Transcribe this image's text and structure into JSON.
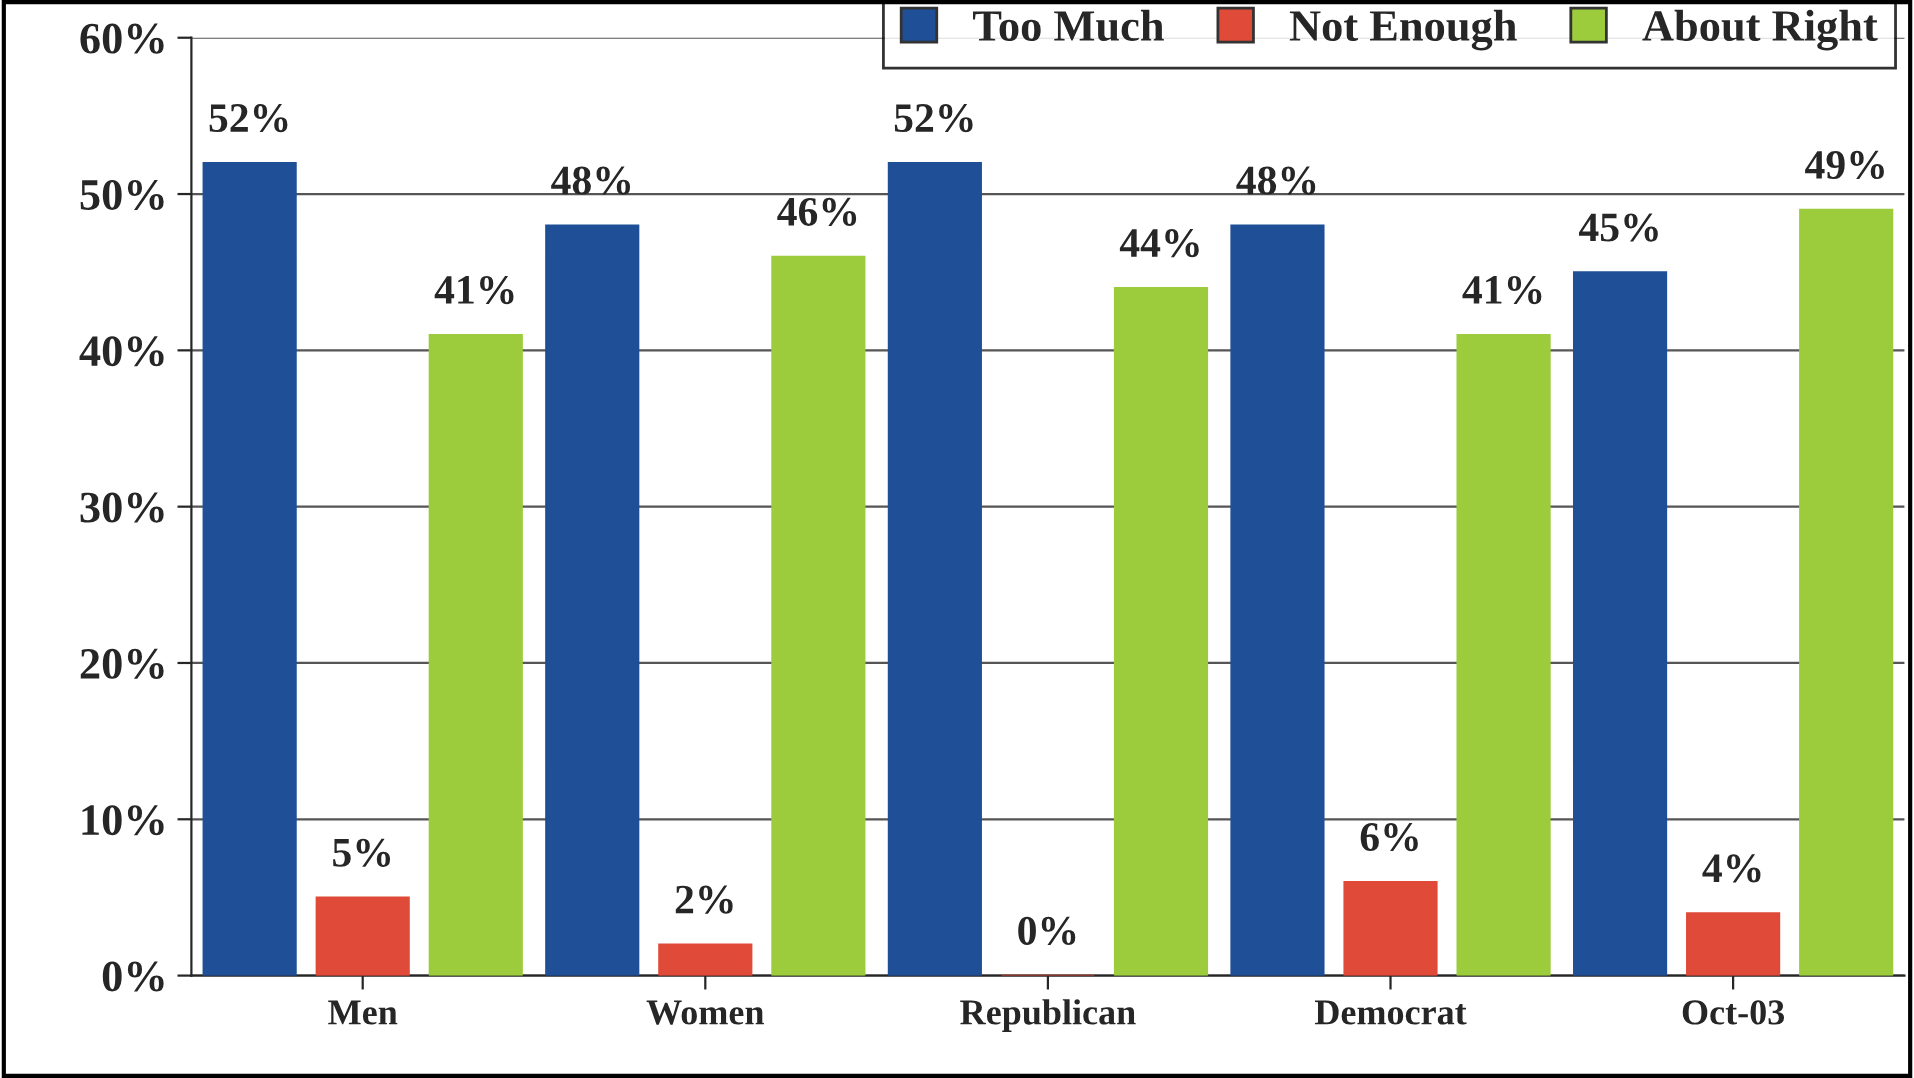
{
  "chart_data": {
    "type": "bar",
    "categories": [
      "Men",
      "Women",
      "Republican",
      "Democrat",
      "Oct-03"
    ],
    "series": [
      {
        "name": "Too Much",
        "color": "#1f4f96",
        "values": [
          52,
          48,
          52,
          48,
          45
        ],
        "value_labels": [
          "52%",
          "48%",
          "52%",
          "48%",
          "45%"
        ]
      },
      {
        "name": "Not Enough",
        "color": "#e04a38",
        "values": [
          5,
          2,
          0,
          6,
          4
        ],
        "value_labels": [
          "5%",
          "2%",
          "0%",
          "6%",
          "4%"
        ]
      },
      {
        "name": "About Right",
        "color": "#9ccc3c",
        "values": [
          41,
          46,
          44,
          41,
          49
        ],
        "value_labels": [
          "41%",
          "46%",
          "44%",
          "41%",
          "49%"
        ]
      }
    ],
    "ylim": [
      0,
      60
    ],
    "yticks": [
      {
        "value": 0,
        "label": "0%"
      },
      {
        "value": 10,
        "label": "10%"
      },
      {
        "value": 20,
        "label": "20%"
      },
      {
        "value": 30,
        "label": "30%"
      },
      {
        "value": 40,
        "label": "40%"
      },
      {
        "value": 50,
        "label": "50%"
      },
      {
        "value": 60,
        "label": "60%"
      }
    ],
    "grid": "y",
    "legend": "top right"
  }
}
